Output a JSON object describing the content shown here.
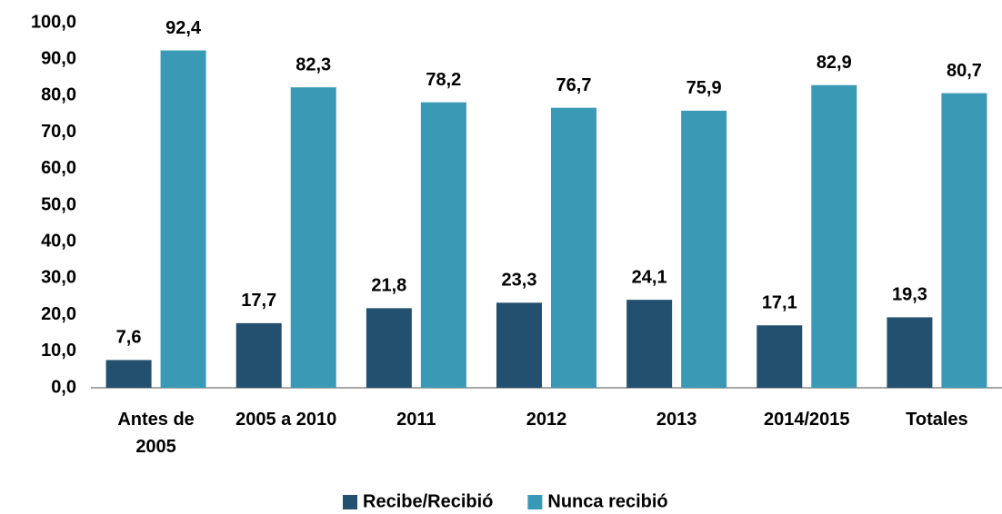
{
  "chart_data": {
    "type": "bar",
    "categories": [
      "Antes de\n2005",
      "2005 a 2010",
      "2011",
      "2012",
      "2013",
      "2014/2015",
      "Totales"
    ],
    "series": [
      {
        "name": "Recibe/Recibió",
        "color": "#23506e",
        "values": [
          7.6,
          17.7,
          21.8,
          23.3,
          24.1,
          17.1,
          19.3
        ],
        "value_labels": [
          "7,6",
          "17,7",
          "21,8",
          "23,3",
          "24,1",
          "17,1",
          "19,3"
        ]
      },
      {
        "name": "Nunca recibió",
        "color": "#3a9ab5",
        "values": [
          92.4,
          82.3,
          78.2,
          76.7,
          75.9,
          82.9,
          80.7
        ],
        "value_labels": [
          "92,4",
          "82,3",
          "78,2",
          "76,7",
          "75,9",
          "82,9",
          "80,7"
        ]
      }
    ],
    "ylim": [
      0,
      100
    ],
    "yticks": [
      {
        "value": 0,
        "label": "0,0"
      },
      {
        "value": 10,
        "label": "10,0"
      },
      {
        "value": 20,
        "label": "20,0"
      },
      {
        "value": 30,
        "label": "30,0"
      },
      {
        "value": 40,
        "label": "40,0"
      },
      {
        "value": 50,
        "label": "50,0"
      },
      {
        "value": 60,
        "label": "60,0"
      },
      {
        "value": 70,
        "label": "70,0"
      },
      {
        "value": 80,
        "label": "80,0"
      },
      {
        "value": 90,
        "label": "90,0"
      },
      {
        "value": 100,
        "label": "100,0"
      }
    ],
    "grid": false,
    "legend": "bottom"
  }
}
